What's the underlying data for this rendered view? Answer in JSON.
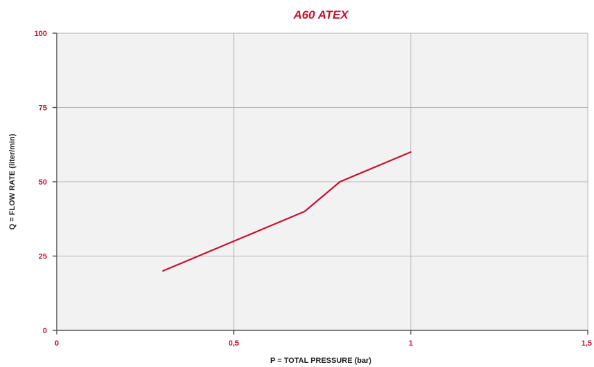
{
  "chart_data": {
    "type": "line",
    "title": "A60 ATEX",
    "xlabel": "P = TOTAL PRESSURE (bar)",
    "ylabel": "Q = FLOW RATE (liter/min)",
    "xlim": [
      0,
      1.5
    ],
    "ylim": [
      0,
      100
    ],
    "x_ticks": [
      0,
      0.5,
      1,
      1.5
    ],
    "x_tick_labels": [
      "0",
      "0,5",
      "1",
      "1,5"
    ],
    "y_ticks": [
      0,
      25,
      50,
      75,
      100
    ],
    "y_tick_labels": [
      "0",
      "25",
      "50",
      "75",
      "100"
    ],
    "grid": true,
    "series": [
      {
        "x": [
          0.3,
          0.5,
          0.7,
          0.8,
          1.0
        ],
        "y": [
          20,
          30,
          40,
          50,
          60
        ]
      }
    ]
  },
  "colors": {
    "title": "#c8102e",
    "tick_labels": "#c8102e",
    "line": "#c8102e",
    "plot_background": "#f2f2f2",
    "grid": "#b5b5b5",
    "axis": "#555555"
  }
}
